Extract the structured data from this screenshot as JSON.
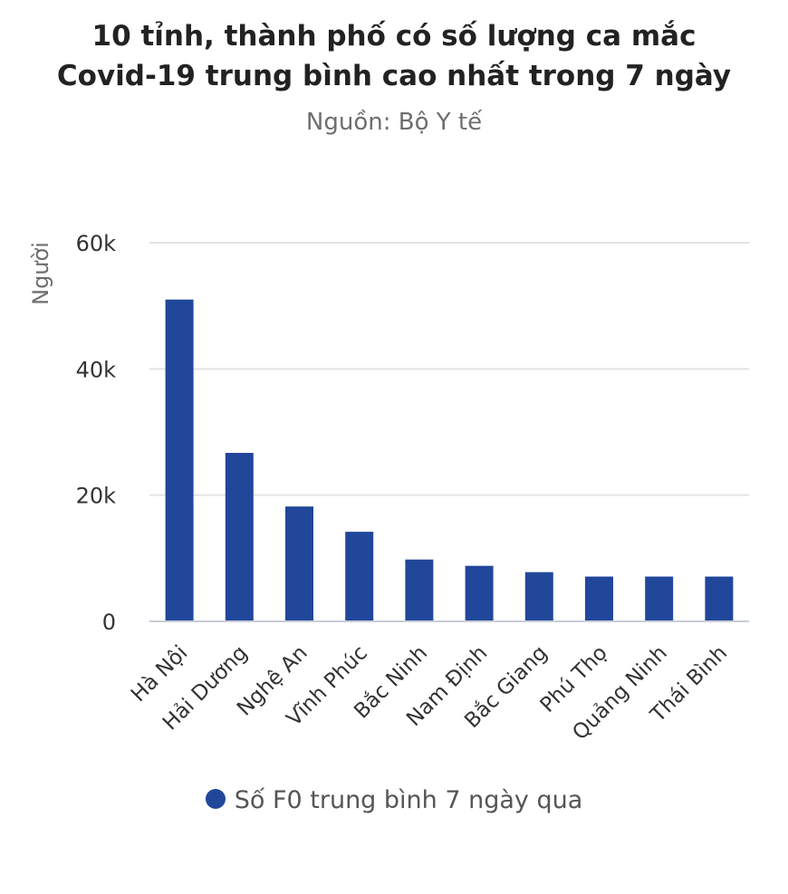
{
  "chart_data": {
    "type": "bar",
    "title_lines": [
      "10 tỉnh, thành phố có số lượng ca mắc",
      "Covid-19 trung bình cao nhất trong 7 ngày"
    ],
    "subtitle": "Nguồn: Bộ Y tế",
    "ylabel": "Người",
    "xlabel": "",
    "ylim": [
      0,
      60000
    ],
    "yticks": [
      0,
      20000,
      40000,
      60000
    ],
    "ytick_labels": [
      "0",
      "20k",
      "40k",
      "60k"
    ],
    "categories": [
      "Hà Nội",
      "Hải Dương",
      "Nghệ An",
      "Vĩnh Phúc",
      "Bắc Ninh",
      "Nam Định",
      "Bắc Giang",
      "Phú Thọ",
      "Quảng Ninh",
      "Thái Bình"
    ],
    "series": [
      {
        "name": "Số F0 trung bình 7 ngày qua",
        "values": [
          51000,
          26700,
          18200,
          14200,
          9800,
          8800,
          7800,
          7100,
          7100,
          7100
        ]
      }
    ],
    "grid": true,
    "legend_position": "bottom"
  },
  "colors": {
    "bar": "#21479b",
    "grid": "#e3e3e3",
    "axis": "#c8cdd8",
    "tick_text": "#333333",
    "label_text": "#6e6e6e"
  }
}
